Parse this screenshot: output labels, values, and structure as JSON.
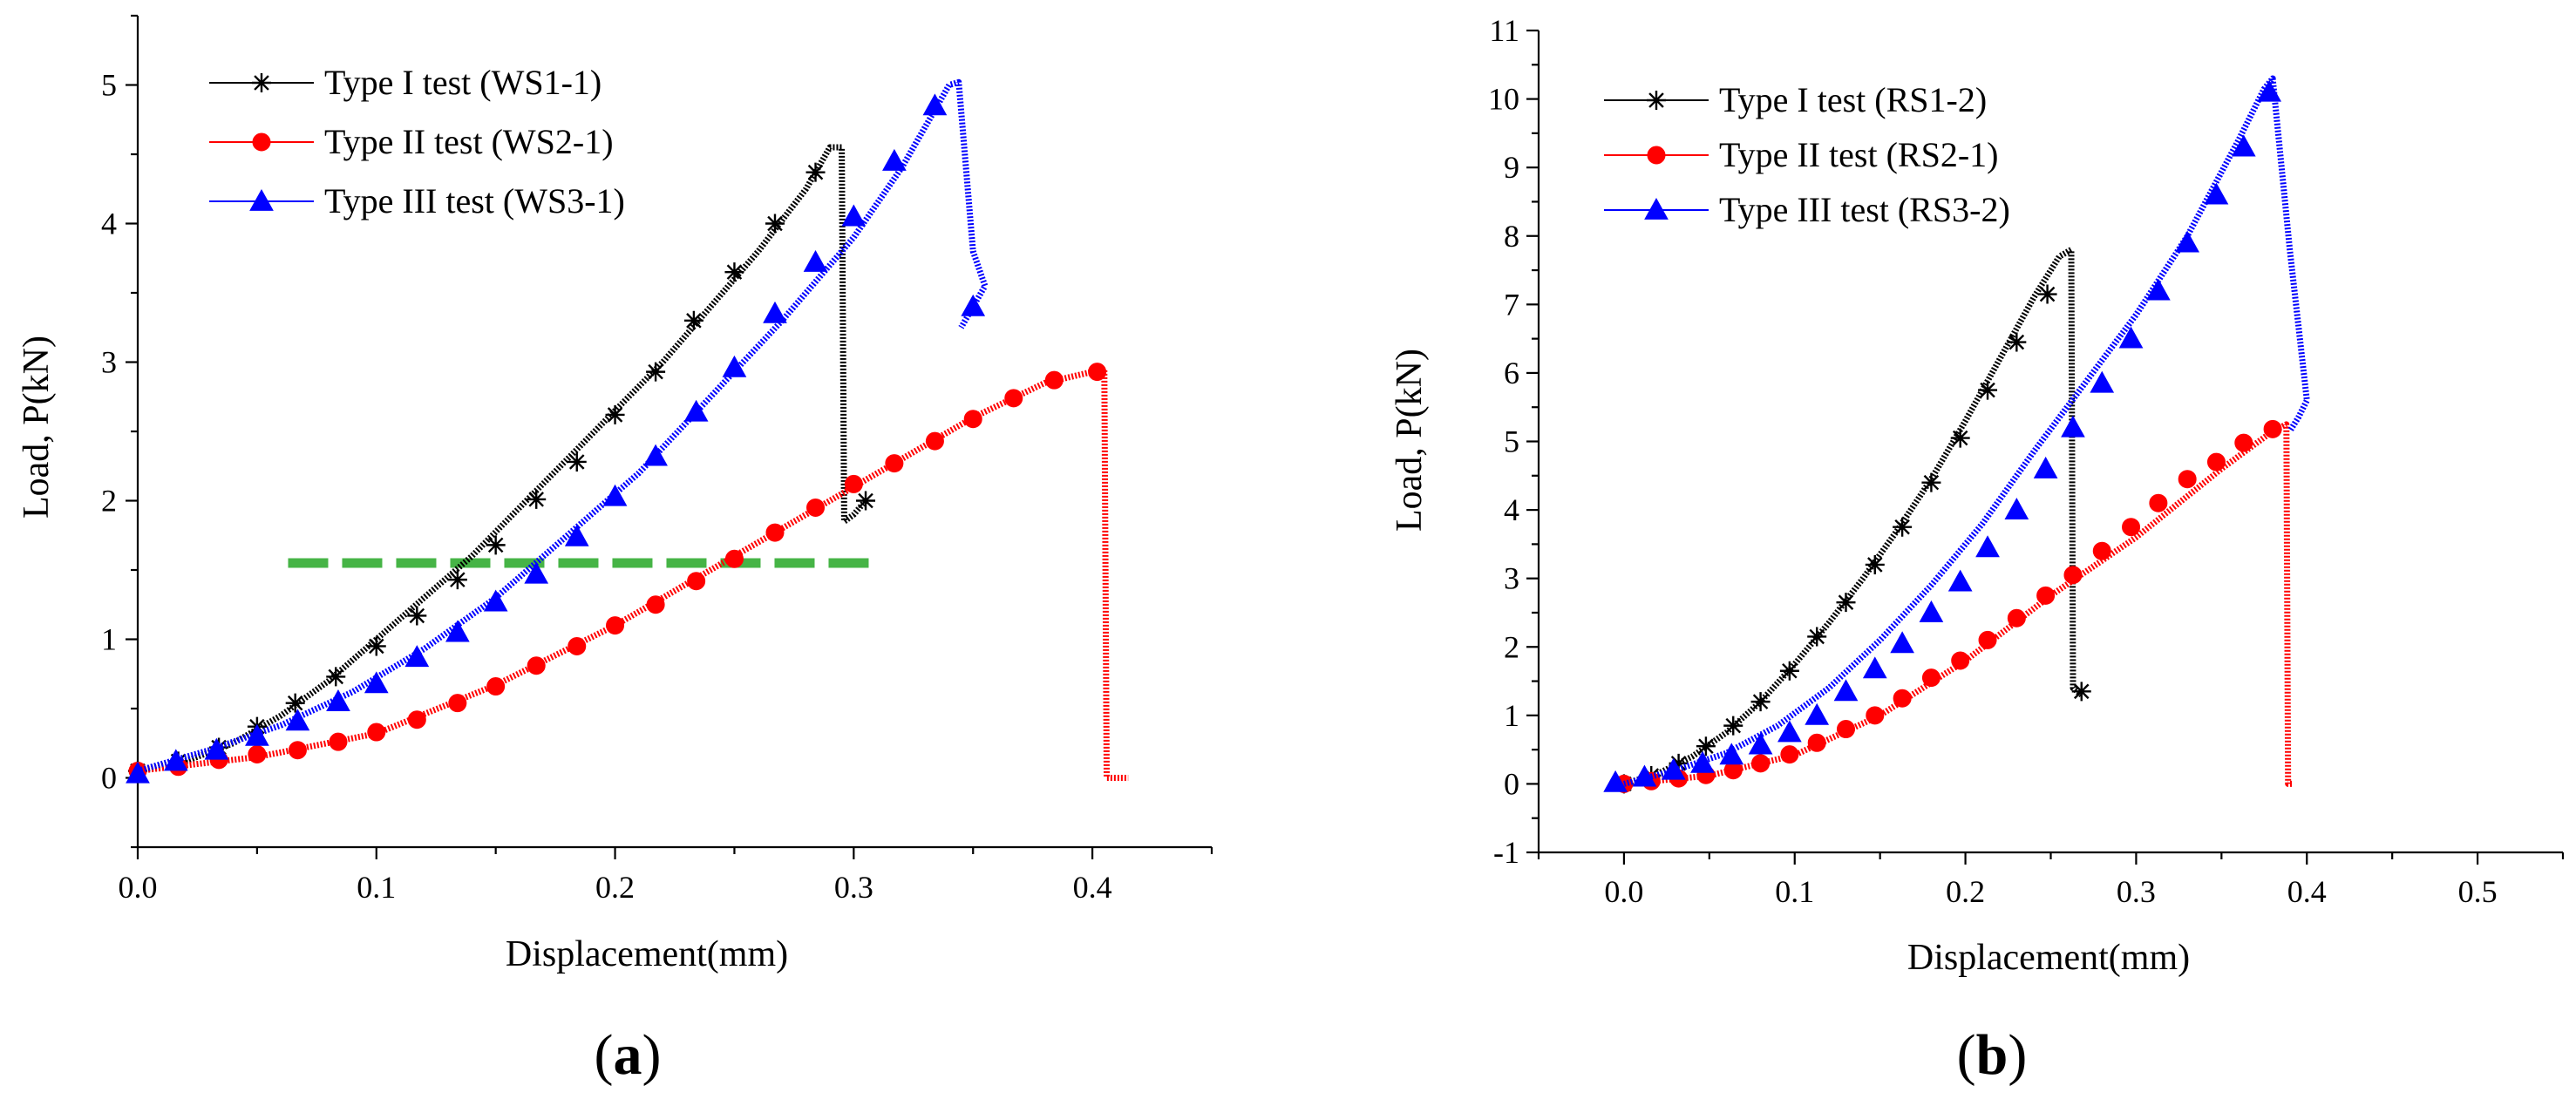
{
  "chart_data": [
    {
      "type": "line",
      "panel_label": {
        "open": "(",
        "letter": "a",
        "close": ")"
      },
      "xlabel": "Displacement(mm)",
      "ylabel": "Load, P(kN)",
      "xlim": [
        0.0,
        0.45
      ],
      "ylim": [
        -0.5,
        5.5
      ],
      "xticks": [
        0.0,
        0.1,
        0.2,
        0.3,
        0.4
      ],
      "xtick_labels": [
        "0.0",
        "0.1",
        "0.2",
        "0.3",
        "0.4"
      ],
      "yticks": [
        0,
        1,
        2,
        3,
        4,
        5
      ],
      "ytick_labels": [
        "0",
        "1",
        "2",
        "3",
        "4",
        "5"
      ],
      "grid": false,
      "legend_position": "top-left",
      "series": [
        {
          "name": "Type I test (WS1-1)",
          "color": "#000000",
          "marker": "asterisk",
          "line_x": [
            0.0,
            0.02,
            0.04,
            0.06,
            0.08,
            0.1,
            0.12,
            0.14,
            0.16,
            0.18,
            0.2,
            0.22,
            0.24,
            0.26,
            0.28,
            0.29,
            0.295,
            0.296,
            0.3,
            0.305
          ],
          "line_y": [
            0.05,
            0.12,
            0.25,
            0.45,
            0.7,
            1.0,
            1.3,
            1.6,
            1.95,
            2.3,
            2.65,
            3.0,
            3.4,
            3.8,
            4.25,
            4.55,
            4.55,
            1.85,
            1.9,
            2.0
          ],
          "marker_x": [
            0.0,
            0.017,
            0.034,
            0.05,
            0.066,
            0.083,
            0.1,
            0.117,
            0.134,
            0.15,
            0.167,
            0.184,
            0.2,
            0.217,
            0.233,
            0.25,
            0.267,
            0.284,
            0.305
          ],
          "marker_y": [
            0.05,
            0.12,
            0.22,
            0.37,
            0.54,
            0.73,
            0.95,
            1.17,
            1.43,
            1.68,
            2.01,
            2.28,
            2.62,
            2.93,
            3.3,
            3.65,
            4.0,
            4.37,
            2.0
          ]
        },
        {
          "name": "Type II test (WS2-1)",
          "color": "#ff0000",
          "marker": "circle",
          "line_x": [
            0.0,
            0.05,
            0.1,
            0.15,
            0.2,
            0.25,
            0.3,
            0.35,
            0.38,
            0.4,
            0.405,
            0.406,
            0.41,
            0.415
          ],
          "line_y": [
            0.05,
            0.15,
            0.32,
            0.67,
            1.1,
            1.6,
            2.1,
            2.6,
            2.85,
            2.93,
            2.95,
            0.0,
            0.0,
            0.0
          ],
          "marker_x": [
            0.0,
            0.017,
            0.034,
            0.05,
            0.067,
            0.084,
            0.1,
            0.117,
            0.134,
            0.15,
            0.167,
            0.184,
            0.2,
            0.217,
            0.234,
            0.25,
            0.267,
            0.284,
            0.3,
            0.317,
            0.334,
            0.35,
            0.367,
            0.384,
            0.402
          ],
          "marker_y": [
            0.05,
            0.08,
            0.13,
            0.17,
            0.2,
            0.26,
            0.33,
            0.42,
            0.54,
            0.66,
            0.81,
            0.95,
            1.1,
            1.25,
            1.42,
            1.58,
            1.77,
            1.95,
            2.12,
            2.27,
            2.43,
            2.59,
            2.74,
            2.87,
            2.93
          ]
        },
        {
          "name": "Type III test (WS3-1)",
          "color": "#0000ff",
          "marker": "triangle",
          "line_x": [
            0.0,
            0.03,
            0.06,
            0.09,
            0.12,
            0.15,
            0.18,
            0.21,
            0.24,
            0.27,
            0.3,
            0.32,
            0.335,
            0.34,
            0.344,
            0.35,
            0.355,
            0.35,
            0.345
          ],
          "line_y": [
            0.05,
            0.2,
            0.38,
            0.62,
            0.93,
            1.3,
            1.75,
            2.2,
            2.75,
            3.3,
            3.9,
            4.4,
            4.85,
            5.0,
            5.02,
            3.8,
            3.55,
            3.4,
            3.25
          ],
          "marker_x": [
            0.0,
            0.016,
            0.033,
            0.05,
            0.067,
            0.084,
            0.1,
            0.117,
            0.134,
            0.15,
            0.167,
            0.184,
            0.2,
            0.217,
            0.234,
            0.25,
            0.267,
            0.284,
            0.3,
            0.317,
            0.334,
            0.35
          ],
          "marker_y": [
            0.03,
            0.12,
            0.2,
            0.3,
            0.41,
            0.55,
            0.68,
            0.87,
            1.05,
            1.27,
            1.47,
            1.74,
            2.03,
            2.32,
            2.64,
            2.96,
            3.35,
            3.72,
            4.05,
            4.45,
            4.85,
            3.4
          ]
        }
      ],
      "reference_line": {
        "color": "#46b446",
        "style": "dashed",
        "x": [
          0.063,
          0.308
        ],
        "y": 1.55
      }
    },
    {
      "type": "line",
      "panel_label": {
        "open": "(",
        "letter": "b",
        "close": ")"
      },
      "xlabel": "Displacement(mm)",
      "ylabel": "Load, P(kN)",
      "xlim": [
        -0.05,
        0.55
      ],
      "ylim": [
        -1,
        11
      ],
      "xticks": [
        0.0,
        0.1,
        0.2,
        0.3,
        0.4,
        0.5
      ],
      "xtick_labels": [
        "0.0",
        "0.1",
        "0.2",
        "0.3",
        "0.4",
        "0.5"
      ],
      "yticks": [
        -1,
        0,
        1,
        2,
        3,
        4,
        5,
        6,
        7,
        8,
        9,
        10,
        11
      ],
      "ytick_labels": [
        "-1",
        "0",
        "1",
        "2",
        "3",
        "4",
        "5",
        "6",
        "7",
        "8",
        "9",
        "10",
        "11"
      ],
      "grid": false,
      "legend_position": "top-left",
      "series": [
        {
          "name": "Type I test (RS1-2)",
          "color": "#000000",
          "marker": "asterisk",
          "line_x": [
            0.0,
            0.02,
            0.04,
            0.06,
            0.08,
            0.1,
            0.12,
            0.14,
            0.16,
            0.18,
            0.2,
            0.22,
            0.24,
            0.255,
            0.262,
            0.263,
            0.268
          ],
          "line_y": [
            0.0,
            0.15,
            0.4,
            0.75,
            1.2,
            1.75,
            2.35,
            3.0,
            3.7,
            4.45,
            5.3,
            6.2,
            7.1,
            7.7,
            7.8,
            1.4,
            1.3
          ],
          "marker_x": [
            0.0,
            0.016,
            0.032,
            0.048,
            0.064,
            0.08,
            0.097,
            0.113,
            0.13,
            0.147,
            0.163,
            0.18,
            0.197,
            0.213,
            0.23,
            0.248,
            0.268
          ],
          "marker_y": [
            0.0,
            0.12,
            0.3,
            0.55,
            0.85,
            1.2,
            1.65,
            2.15,
            2.65,
            3.2,
            3.75,
            4.4,
            5.05,
            5.75,
            6.45,
            7.15,
            1.35
          ]
        },
        {
          "name": "Type II test (RS2-1)",
          "color": "#ff0000",
          "marker": "circle",
          "line_x": [
            0.0,
            0.05,
            0.1,
            0.15,
            0.2,
            0.25,
            0.3,
            0.35,
            0.38,
            0.388,
            0.389,
            0.392
          ],
          "line_y": [
            0.0,
            0.12,
            0.42,
            1.0,
            1.8,
            2.75,
            3.6,
            4.6,
            5.15,
            5.25,
            0.0,
            0.0
          ],
          "marker_x": [
            0.0,
            0.016,
            0.032,
            0.048,
            0.064,
            0.08,
            0.097,
            0.113,
            0.13,
            0.147,
            0.163,
            0.18,
            0.197,
            0.213,
            0.23,
            0.247,
            0.263,
            0.28,
            0.297,
            0.313,
            0.33,
            0.347,
            0.363,
            0.38
          ],
          "marker_y": [
            0.0,
            0.04,
            0.08,
            0.13,
            0.2,
            0.3,
            0.43,
            0.6,
            0.8,
            1.0,
            1.25,
            1.55,
            1.8,
            2.1,
            2.42,
            2.75,
            3.05,
            3.4,
            3.75,
            4.1,
            4.45,
            4.7,
            4.98,
            5.18
          ]
        },
        {
          "name": "Type III test (RS3-2)",
          "color": "#0000ff",
          "marker": "triangle",
          "line_x": [
            0.0,
            0.03,
            0.06,
            0.09,
            0.12,
            0.15,
            0.18,
            0.21,
            0.24,
            0.27,
            0.3,
            0.33,
            0.36,
            0.375,
            0.38,
            0.39,
            0.4,
            0.395,
            0.39
          ],
          "line_y": [
            0.0,
            0.2,
            0.45,
            0.85,
            1.4,
            2.1,
            2.9,
            3.8,
            4.85,
            5.85,
            6.85,
            8.0,
            9.4,
            10.15,
            10.3,
            7.8,
            5.6,
            5.35,
            5.15
          ],
          "marker_x": [
            -0.005,
            0.012,
            0.029,
            0.046,
            0.063,
            0.08,
            0.097,
            0.113,
            0.13,
            0.147,
            0.163,
            0.18,
            0.197,
            0.213,
            0.23,
            0.247,
            0.263,
            0.28,
            0.297,
            0.313,
            0.33,
            0.347,
            0.363,
            0.378
          ],
          "marker_y": [
            0.02,
            0.1,
            0.2,
            0.3,
            0.42,
            0.57,
            0.75,
            1.0,
            1.35,
            1.68,
            2.05,
            2.5,
            2.95,
            3.45,
            4.0,
            4.6,
            5.2,
            5.85,
            6.5,
            7.2,
            7.9,
            8.6,
            9.3,
            10.1
          ]
        }
      ]
    }
  ]
}
